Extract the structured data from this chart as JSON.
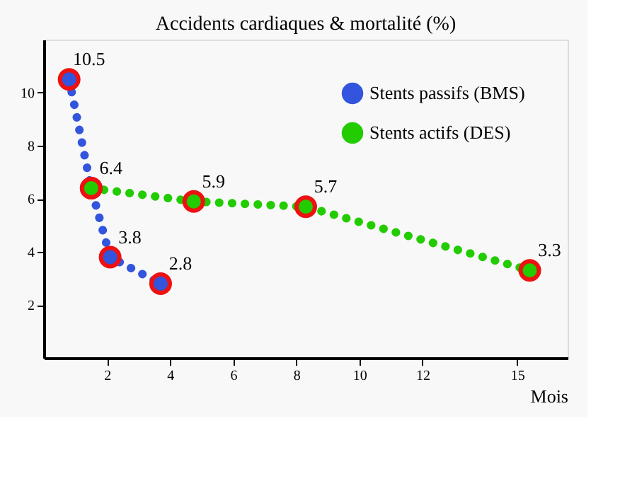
{
  "chart_data": {
    "type": "line",
    "title": "Accidents cardiaques & mortalité (%)",
    "xlabel": "Mois",
    "series": [
      {
        "name": "Stents passifs (BMS)",
        "color": "#3355dd",
        "x": [
          0.8,
          1.5,
          2.1,
          3.7
        ],
        "values": [
          10.5,
          6.4,
          3.8,
          2.8
        ],
        "value_labels": [
          "10.5",
          "6.4",
          "3.8",
          "2.8"
        ]
      },
      {
        "name": "Stents actifs (DES)",
        "color": "#22cc00",
        "x": [
          1.5,
          4.75,
          8.3,
          15.4
        ],
        "values": [
          6.4,
          5.9,
          5.7,
          3.3
        ],
        "value_labels": [
          null,
          "5.9",
          "5.7",
          "3.3"
        ]
      }
    ],
    "xlim": [
      0,
      16.6
    ],
    "xticks": [
      2,
      4,
      6,
      8,
      10,
      12,
      15
    ],
    "ylim": [
      0,
      12
    ],
    "yticks": [
      2,
      4,
      6,
      8,
      10
    ],
    "grid": false,
    "legend": "top right",
    "marker": "circle",
    "line_style": "dotted"
  }
}
